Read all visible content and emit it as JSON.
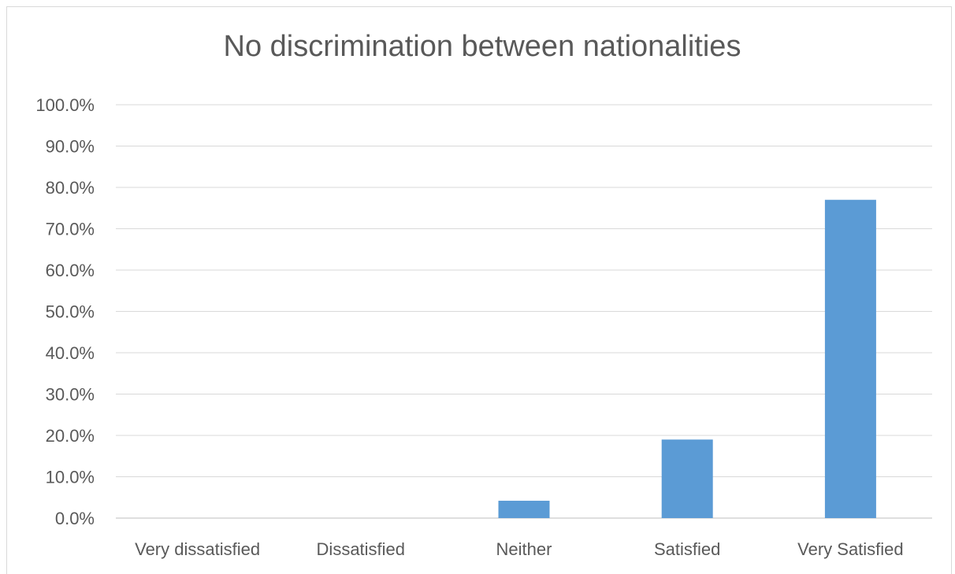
{
  "chart_data": {
    "type": "bar",
    "title": "No discrimination between nationalities",
    "categories": [
      "Very dissatisfied",
      "Dissatisfied",
      "Neither",
      "Satisfied",
      "Very Satisfied"
    ],
    "values": [
      0.0,
      0.0,
      4.2,
      19.0,
      77.0
    ],
    "ylim": [
      0,
      100
    ],
    "yticks": [
      "0.0%",
      "10.0%",
      "20.0%",
      "30.0%",
      "40.0%",
      "50.0%",
      "60.0%",
      "70.0%",
      "80.0%",
      "90.0%",
      "100.0%"
    ],
    "xlabel": "",
    "ylabel": "",
    "grid": true,
    "legend": "none",
    "bar_color": "#5b9bd5",
    "gridline_color": "#d9d9d9",
    "axis_line_color": "#bfbfbf",
    "text_color": "#595959"
  }
}
